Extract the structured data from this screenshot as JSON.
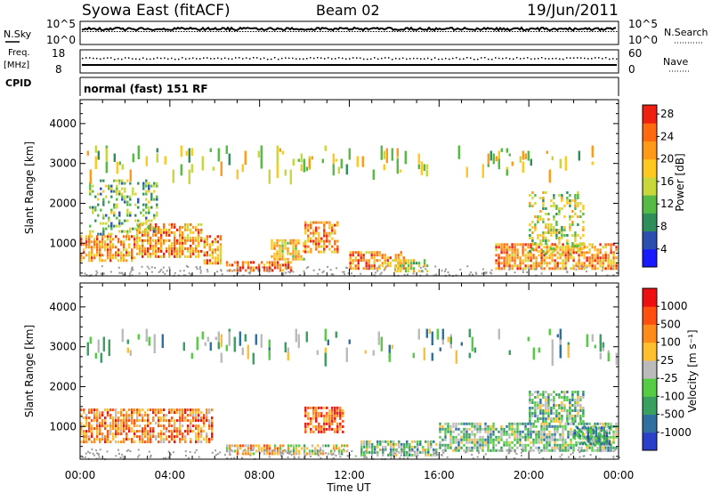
{
  "header": {
    "station": "Syowa East (fitACF)",
    "beam": "Beam 02",
    "date": "19/Jun/2011"
  },
  "noise_panel": {
    "left_label": "N.Sky",
    "right_label": "N.Search",
    "ticks_left": [
      "10^5",
      "10^0"
    ],
    "ticks_right": [
      "10^5",
      "10^0"
    ]
  },
  "freq_panel": {
    "left_label_1": "Freq.",
    "left_label_2": "[MHz]",
    "right_label": "Nave",
    "ticks_left": [
      "18",
      "8"
    ],
    "ticks_right": [
      "60",
      "0"
    ]
  },
  "cpid_panel": {
    "label": "CPID",
    "text": "normal (fast) 151 RF"
  },
  "x_axis": {
    "title": "Time UT",
    "ticks": [
      "00:00",
      "04:00",
      "08:00",
      "12:00",
      "16:00",
      "20:00",
      "00:00"
    ]
  },
  "chart_data": [
    {
      "type": "heatmap",
      "name": "power",
      "ylabel": "Slant Range [km]",
      "ylim": [
        180,
        4600
      ],
      "yticks": [
        1000,
        2000,
        3000,
        4000
      ],
      "xlim_hours": [
        0,
        24
      ],
      "colorbar": {
        "label": "Power [dB]",
        "ticks": [
          "4",
          "8",
          "12",
          "16",
          "20",
          "24",
          "28"
        ],
        "colors": [
          "#1a1aff",
          "#2a4fb0",
          "#2f8f5a",
          "#55bb44",
          "#c8d83a",
          "#ffc820",
          "#ff9a18",
          "#ff6a10",
          "#ee2010"
        ]
      },
      "regions": [
        {
          "t": [
            0.0,
            2.5
          ],
          "r": [
            550,
            1200
          ],
          "level": 6
        },
        {
          "t": [
            2.5,
            5.5
          ],
          "r": [
            650,
            1500
          ],
          "level": 6
        },
        {
          "t": [
            0.4,
            3.5
          ],
          "r": [
            1200,
            2600
          ],
          "level": 3
        },
        {
          "t": [
            5.5,
            6.3
          ],
          "r": [
            450,
            1200
          ],
          "level": 6
        },
        {
          "t": [
            6.5,
            9.5
          ],
          "r": [
            250,
            550
          ],
          "level": 7
        },
        {
          "t": [
            8.5,
            10.0
          ],
          "r": [
            550,
            1100
          ],
          "level": 5
        },
        {
          "t": [
            10.0,
            11.6
          ],
          "r": [
            750,
            1550
          ],
          "level": 6
        },
        {
          "t": [
            12.0,
            14.5
          ],
          "r": [
            350,
            800
          ],
          "level": 6
        },
        {
          "t": [
            14.0,
            15.5
          ],
          "r": [
            280,
            600
          ],
          "level": 4
        },
        {
          "t": [
            18.5,
            24.0
          ],
          "r": [
            300,
            1000
          ],
          "level": 6
        },
        {
          "t": [
            20.0,
            22.5
          ],
          "r": [
            700,
            2300
          ],
          "level": 4
        },
        {
          "t": [
            0.3,
            24.0
          ],
          "r": [
            2800,
            3450
          ],
          "level": 4
        }
      ]
    },
    {
      "type": "heatmap",
      "name": "velocity",
      "ylabel": "Slant Range [km]",
      "ylim": [
        180,
        4600
      ],
      "yticks": [
        1000,
        2000,
        3000,
        4000
      ],
      "xlim_hours": [
        0,
        24
      ],
      "colorbar": {
        "label": "Velocity [m s⁻¹]",
        "ticks": [
          "1000",
          "500",
          "100",
          "25",
          "-25",
          "-100",
          "-500",
          "-1000"
        ],
        "colors": [
          "#2a40c8",
          "#2f70a0",
          "#3aa060",
          "#55cc44",
          "#bbbbbb",
          "#ffc030",
          "#ff8c18",
          "#ff5010",
          "#ee1010"
        ]
      },
      "regions": [
        {
          "t": [
            0.0,
            6.0
          ],
          "r": [
            550,
            1450
          ],
          "level": 6
        },
        {
          "t": [
            6.5,
            9.0
          ],
          "r": [
            300,
            550
          ],
          "level": 5
        },
        {
          "t": [
            9.0,
            12.0
          ],
          "r": [
            300,
            550
          ],
          "level": 4
        },
        {
          "t": [
            10.0,
            11.8
          ],
          "r": [
            800,
            1500
          ],
          "level": 7
        },
        {
          "t": [
            12.5,
            16.0
          ],
          "r": [
            250,
            650
          ],
          "level": 3
        },
        {
          "t": [
            16.0,
            24.0
          ],
          "r": [
            350,
            1100
          ],
          "level": 3
        },
        {
          "t": [
            20.0,
            22.5
          ],
          "r": [
            1100,
            1900
          ],
          "level": 3
        },
        {
          "t": [
            22.0,
            23.7
          ],
          "r": [
            500,
            1000
          ],
          "level": 2
        },
        {
          "t": [
            0.3,
            24.0
          ],
          "r": [
            2800,
            3450
          ],
          "level": 3
        }
      ]
    }
  ]
}
